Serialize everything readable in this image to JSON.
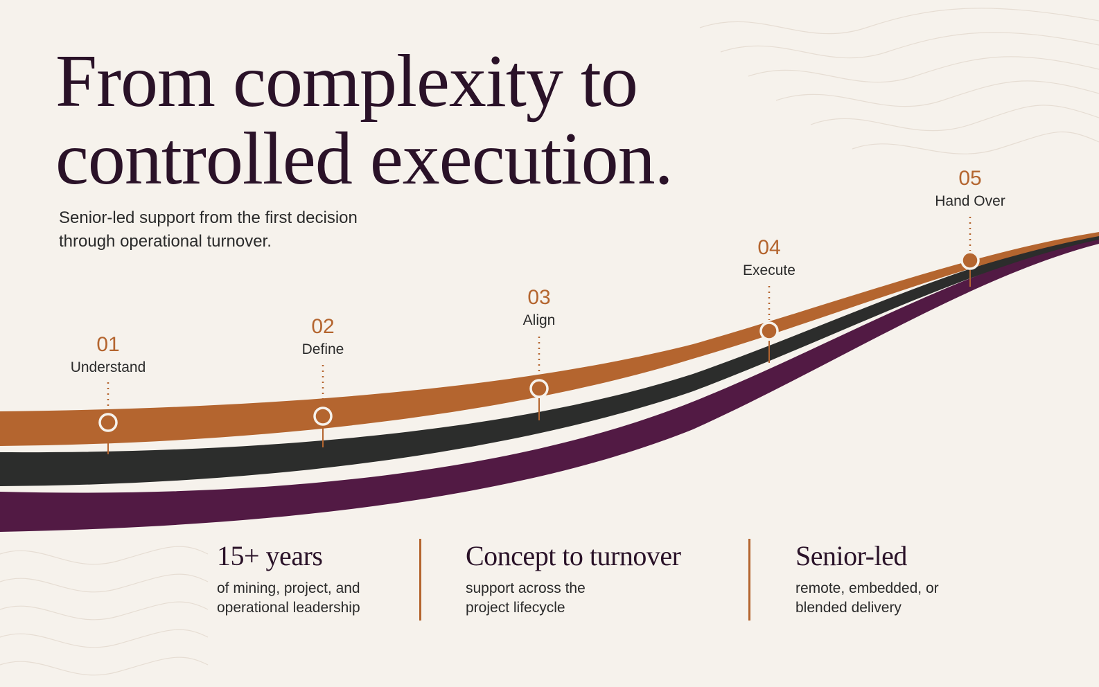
{
  "headline": {
    "line1": "From complexity to",
    "line2": "controlled execution."
  },
  "subtitle": {
    "line1": "Senior-led support from the first decision",
    "line2": "through operational turnover."
  },
  "steps": [
    {
      "number": "01",
      "label": "Understand"
    },
    {
      "number": "02",
      "label": "Define"
    },
    {
      "number": "03",
      "label": "Align"
    },
    {
      "number": "04",
      "label": "Execute"
    },
    {
      "number": "05",
      "label": "Hand Over"
    }
  ],
  "stats": [
    {
      "value": "15+ years",
      "desc_line1": "of mining, project, and",
      "desc_line2": "operational leadership"
    },
    {
      "value": "Concept to turnover",
      "desc_line1": "support across the",
      "desc_line2": "project lifecycle"
    },
    {
      "value": "Senior-led",
      "desc_line1": "remote, embedded, or",
      "desc_line2": "blended delivery"
    }
  ],
  "colors": {
    "background": "#f6f2ec",
    "accent_orange": "#b4652f",
    "band_dark": "#2c2d2c",
    "band_purple": "#521a44",
    "headline": "#2a1228"
  }
}
